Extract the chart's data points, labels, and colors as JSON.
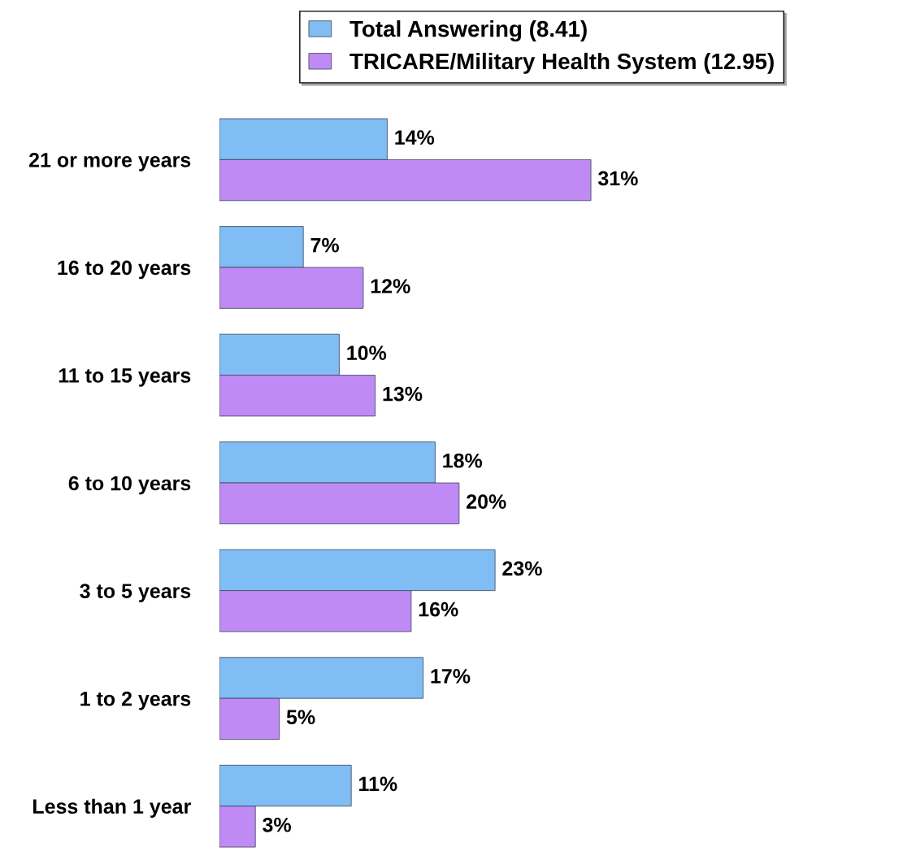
{
  "chart_data": {
    "type": "bar",
    "orientation": "horizontal",
    "categories": [
      "21 or more years",
      "16 to 20 years",
      "11 to 15 years",
      "6 to 10 years",
      "3 to 5 years",
      "1 to 2 years",
      "Less than 1 year"
    ],
    "series": [
      {
        "name": "Total Answering (8.41)",
        "color": "#80bdf5",
        "values": [
          14,
          7,
          10,
          18,
          23,
          17,
          11
        ],
        "value_labels": [
          "14%",
          "7%",
          "10%",
          "18%",
          "23%",
          "17%",
          "11%"
        ]
      },
      {
        "name": "TRICARE/Military Health System (12.95)",
        "color": "#c08af5",
        "values": [
          31,
          12,
          13,
          20,
          16,
          5,
          3
        ],
        "value_labels": [
          "31%",
          "12%",
          "13%",
          "20%",
          "16%",
          "5%",
          "3%"
        ]
      }
    ],
    "tick_labels": "y",
    "grid": false,
    "legend": "top"
  }
}
